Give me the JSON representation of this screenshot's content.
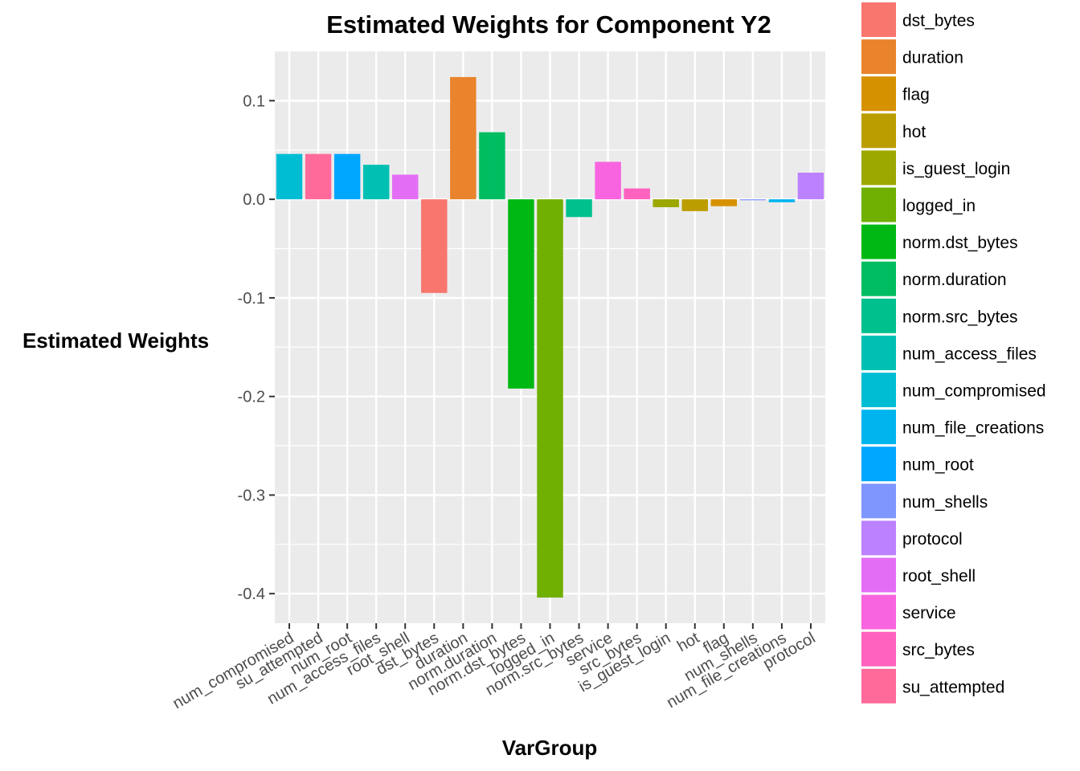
{
  "chart_data": {
    "type": "bar",
    "title": "Estimated Weights for Component Y2",
    "xlabel": "VarGroup",
    "ylabel": "Estimated Weights",
    "ylim": [
      -0.43,
      0.15
    ],
    "yticks": [
      0.1,
      0.0,
      -0.1,
      -0.2,
      -0.3,
      -0.4
    ],
    "ytick_labels": [
      "0.1",
      "0.0",
      "-0.1",
      "-0.2",
      "-0.3",
      "-0.4"
    ],
    "grid": true,
    "legend_position": "right",
    "categories": [
      "num_compromised",
      "su_attempted",
      "num_root",
      "num_access_files",
      "root_shell",
      "dst_bytes",
      "duration",
      "norm.duration",
      "norm.dst_bytes",
      "logged_in",
      "norm.src_bytes",
      "service",
      "src_bytes",
      "is_guest_login",
      "hot",
      "flag",
      "num_shells",
      "num_file_creations",
      "protocol"
    ],
    "values": [
      0.046,
      0.046,
      0.046,
      0.035,
      0.025,
      -0.095,
      0.124,
      0.068,
      -0.192,
      -0.404,
      -0.018,
      0.038,
      0.011,
      -0.008,
      -0.012,
      -0.007,
      -0.001,
      -0.003,
      0.027
    ],
    "legend": [
      {
        "label": "dst_bytes",
        "color": "#F8766D"
      },
      {
        "label": "duration",
        "color": "#E9842C"
      },
      {
        "label": "flag",
        "color": "#D69100"
      },
      {
        "label": "hot",
        "color": "#BC9D00"
      },
      {
        "label": "is_guest_login",
        "color": "#9CA700"
      },
      {
        "label": "logged_in",
        "color": "#6FB000"
      },
      {
        "label": "norm.dst_bytes",
        "color": "#00B813"
      },
      {
        "label": "norm.duration",
        "color": "#00BD61"
      },
      {
        "label": "norm.src_bytes",
        "color": "#00C08E"
      },
      {
        "label": "num_access_files",
        "color": "#00C0B4"
      },
      {
        "label": "num_compromised",
        "color": "#00BDD4"
      },
      {
        "label": "num_file_creations",
        "color": "#00B5EE"
      },
      {
        "label": "num_root",
        "color": "#00A7FF"
      },
      {
        "label": "num_shells",
        "color": "#7F96FF"
      },
      {
        "label": "protocol",
        "color": "#BC81FF"
      },
      {
        "label": "root_shell",
        "color": "#E46DF6"
      },
      {
        "label": "service",
        "color": "#F863DF"
      },
      {
        "label": "src_bytes",
        "color": "#FF62BF"
      },
      {
        "label": "su_attempted",
        "color": "#FF6A9A"
      }
    ]
  }
}
